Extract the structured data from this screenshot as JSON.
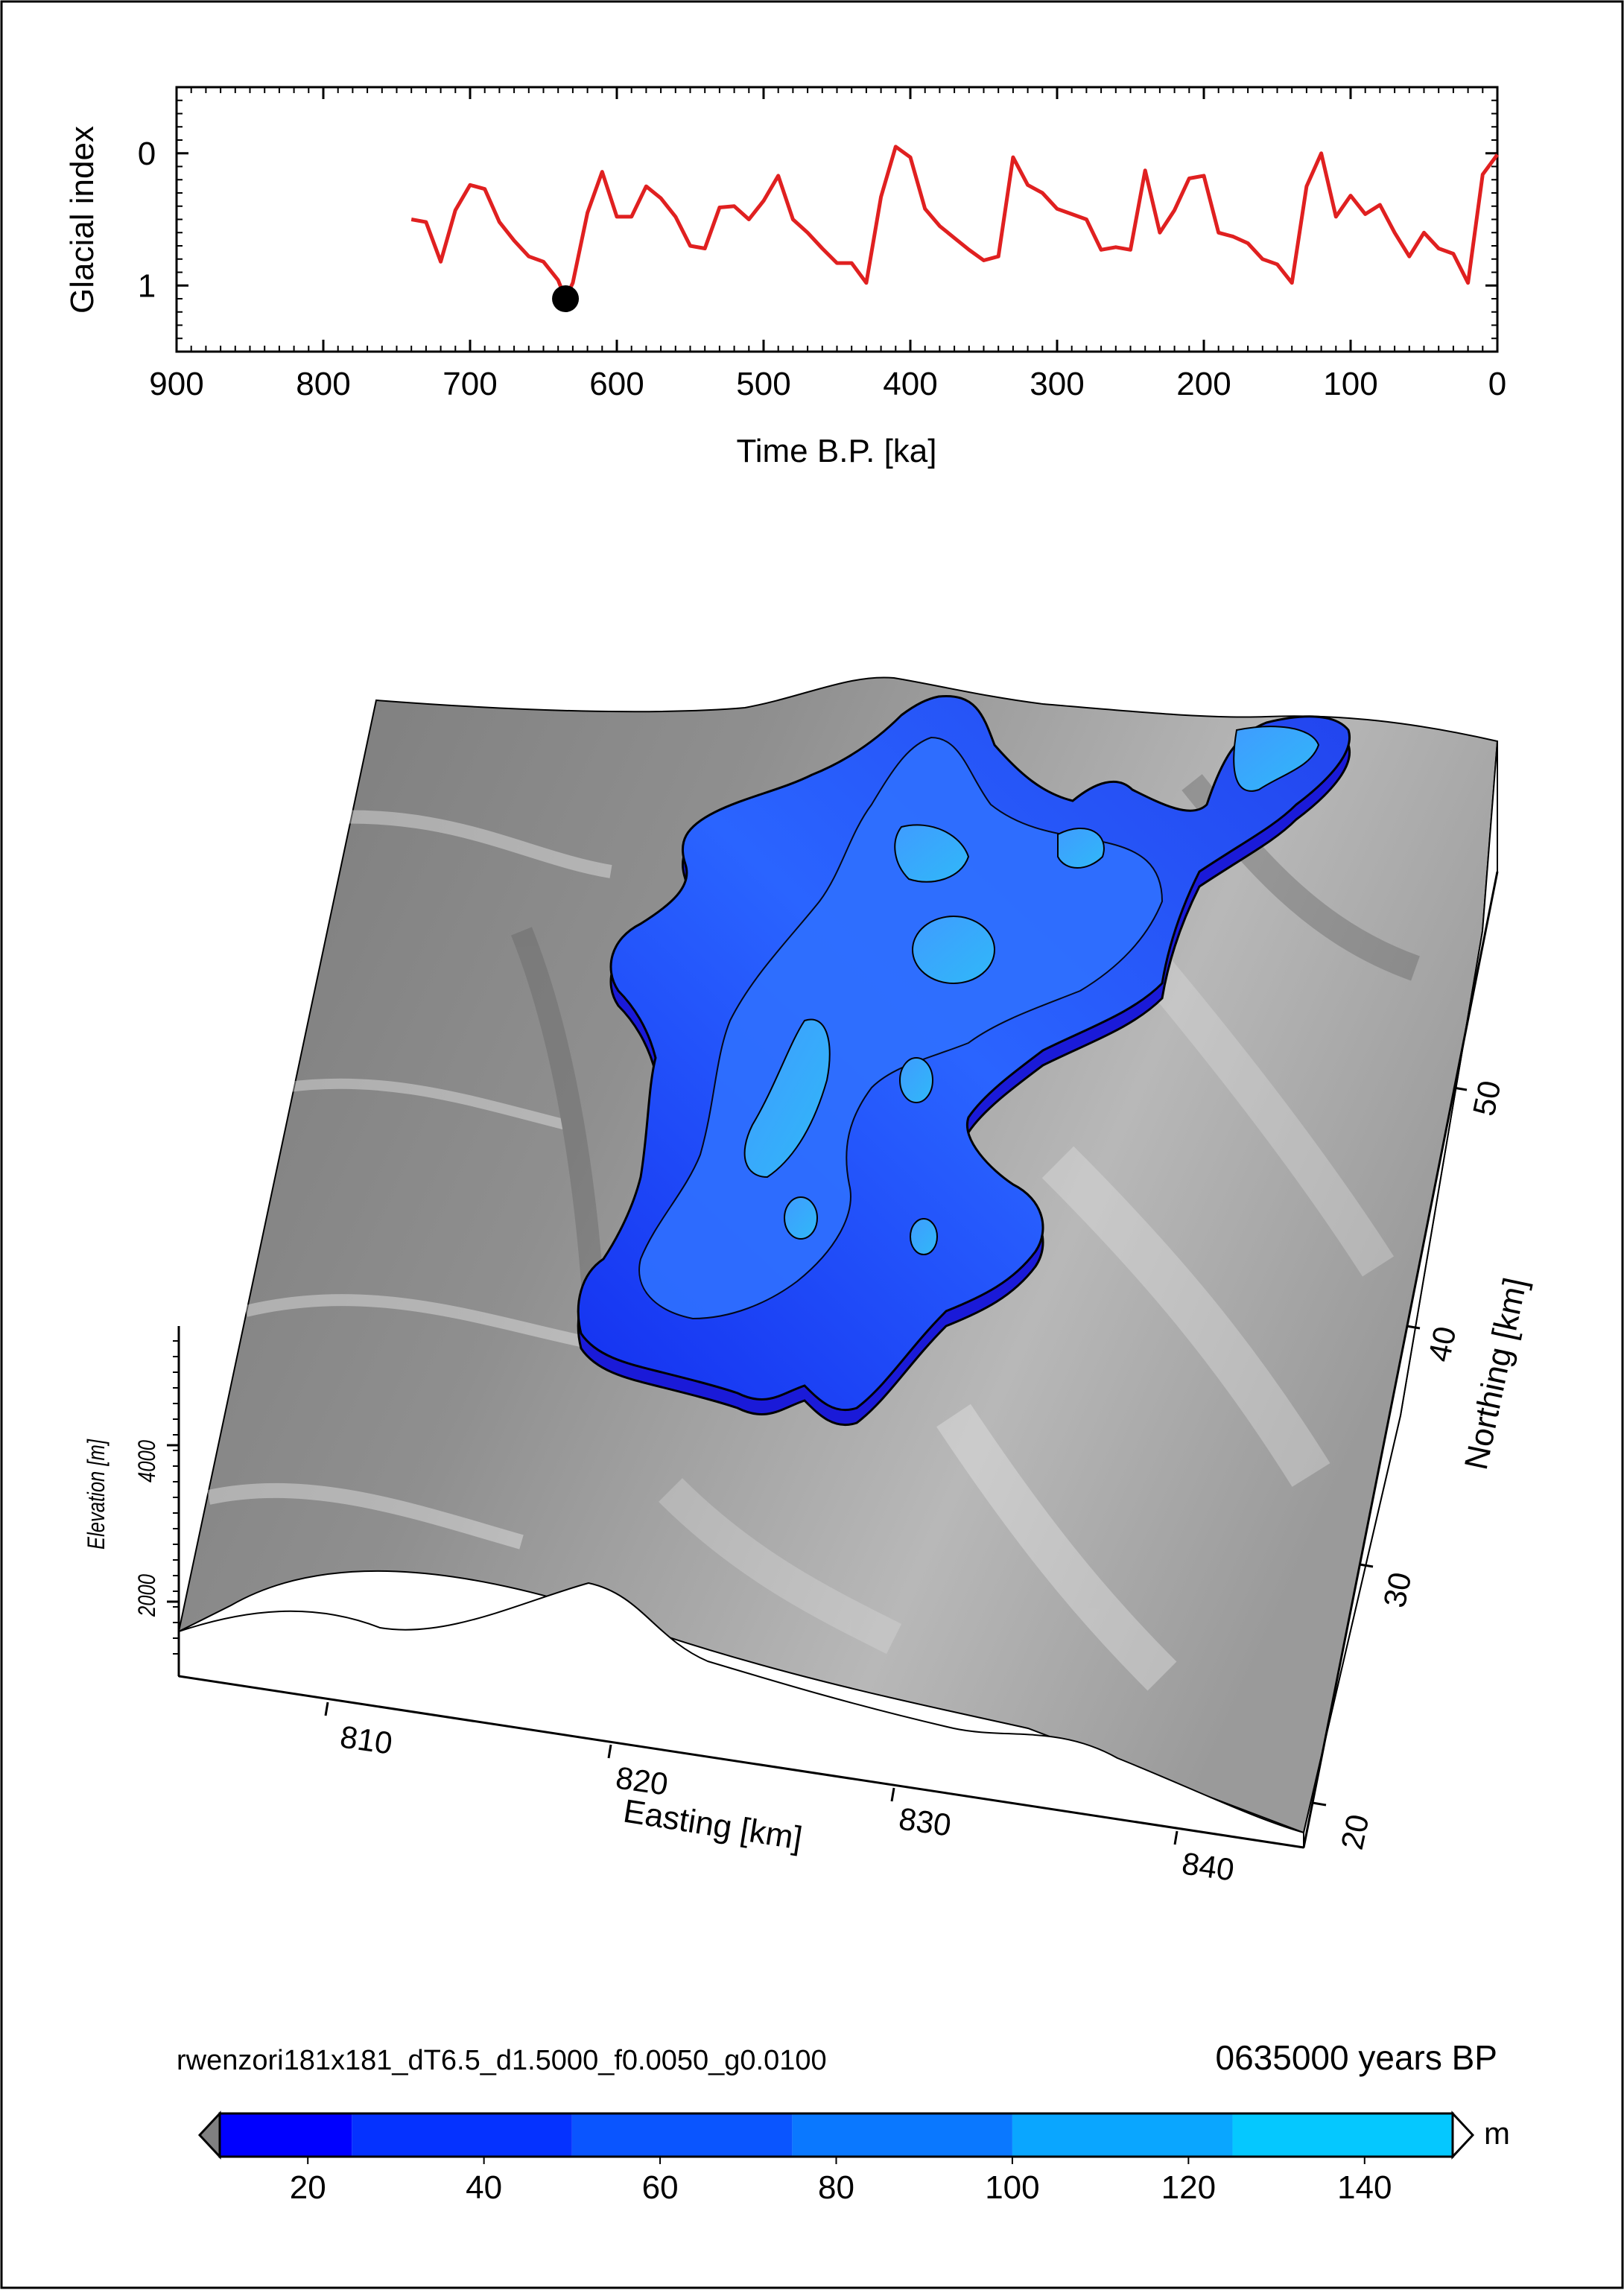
{
  "chart_data": [
    {
      "type": "line",
      "ylabel": "Glacial index",
      "xlabel": "Time B.P. [ka]",
      "xlim": [
        900,
        0
      ],
      "ylim": [
        1.5,
        -0.5
      ],
      "x_ticks": [
        "900",
        "800",
        "700",
        "600",
        "500",
        "400",
        "300",
        "200",
        "100",
        "0"
      ],
      "y_ticks": [
        "0",
        "1"
      ],
      "series": [
        {
          "color": "#e02020",
          "x": [
            740,
            730,
            720,
            710,
            700,
            690,
            680,
            670,
            660,
            650,
            640,
            635,
            630,
            620,
            610,
            600,
            590,
            580,
            570,
            560,
            550,
            540,
            530,
            520,
            510,
            500,
            490,
            480,
            470,
            460,
            450,
            440,
            430,
            420,
            410,
            400,
            390,
            380,
            370,
            360,
            350,
            340,
            330,
            320,
            310,
            300,
            290,
            280,
            270,
            260,
            250,
            240,
            230,
            220,
            210,
            200,
            190,
            180,
            170,
            160,
            150,
            140,
            130,
            120,
            110,
            100,
            90,
            80,
            70,
            60,
            50,
            40,
            30,
            20,
            10,
            0
          ],
          "values": [
            0.5,
            0.52,
            0.82,
            0.43,
            0.24,
            0.27,
            0.52,
            0.66,
            0.78,
            0.82,
            0.96,
            1.1,
            0.98,
            0.45,
            0.14,
            0.48,
            0.48,
            0.25,
            0.34,
            0.48,
            0.7,
            0.72,
            0.41,
            0.4,
            0.5,
            0.36,
            0.17,
            0.5,
            0.6,
            0.72,
            0.83,
            0.83,
            0.98,
            0.33,
            -0.05,
            0.03,
            0.42,
            0.55,
            0.64,
            0.73,
            0.81,
            0.78,
            0.03,
            0.24,
            0.3,
            0.42,
            0.46,
            0.5,
            0.73,
            0.71,
            0.73,
            0.13,
            0.6,
            0.43,
            0.19,
            0.17,
            0.6,
            0.63,
            0.68,
            0.8,
            0.84,
            0.98,
            0.25,
            0.0,
            0.48,
            0.32,
            0.46,
            0.39,
            0.6,
            0.78,
            0.6,
            0.72,
            0.76,
            0.98,
            0.16,
            0.01
          ]
        }
      ],
      "marker": {
        "x": 635,
        "y": 1.1,
        "color": "#000000"
      }
    },
    {
      "type": "surface3d",
      "xlabel": "Easting [km]",
      "ylabel": "Northing [km]",
      "zlabel": "Elevation [m]",
      "x_ticks": [
        "810",
        "820",
        "830",
        "840"
      ],
      "y_ticks": [
        "20",
        "30",
        "40",
        "50"
      ],
      "z_ticks": [
        "2000",
        "4000"
      ],
      "colors": {
        "terrain": "#8a8a8a",
        "ice": "#1f4dff",
        "ice_light": "#38a8ff"
      }
    }
  ],
  "footer": {
    "run_name": "rwenzori181x181_dT6.5_d1.5000_f0.0050_g0.0100",
    "time_label": "0635000 years BP"
  },
  "colorbar": {
    "unit": "m",
    "ticks": [
      "20",
      "40",
      "60",
      "80",
      "100",
      "120",
      "140"
    ],
    "bins": [
      10,
      25,
      50,
      75,
      100,
      125,
      150
    ],
    "colors": [
      "#0000ff",
      "#0532ff",
      "#0a55ff",
      "#0a78ff",
      "#0aa6ff",
      "#05c8ff",
      "#00e8ff"
    ],
    "range": [
      10,
      150
    ]
  }
}
